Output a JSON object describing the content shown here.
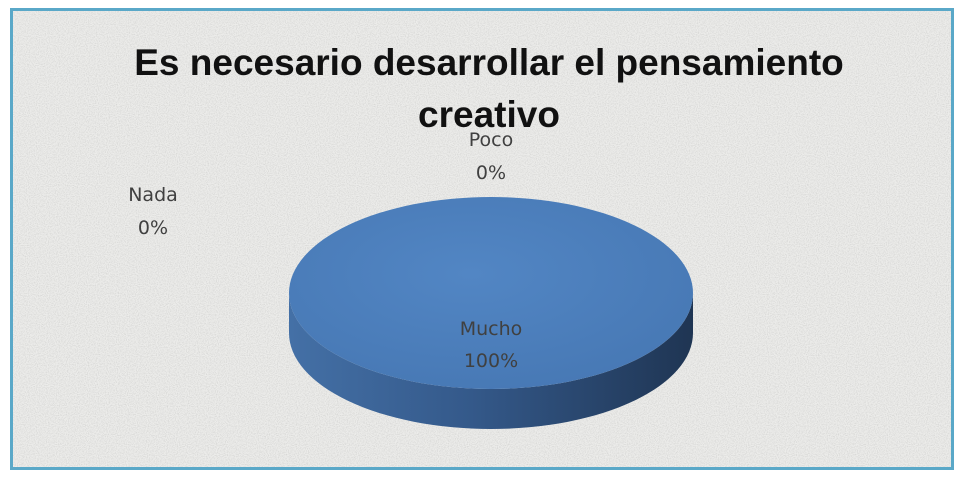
{
  "chart_data": {
    "type": "pie",
    "style": "3d",
    "title_lines": [
      "Es necesario desarrollar el pensamiento",
      "creativo"
    ],
    "categories": [
      "Mucho",
      "Poco",
      "Nada"
    ],
    "values": [
      100,
      0,
      0
    ],
    "data_labels": [
      {
        "category": "Mucho",
        "value": "100%"
      },
      {
        "category": "Poco",
        "value": "0%"
      },
      {
        "category": "Nada",
        "value": "0%"
      }
    ],
    "legend": "none",
    "colors": {
      "slice_top": "#4a7ebb",
      "slice_side_dark": "#1f3553",
      "slice_side_light": "#4470a6",
      "frame": "#5aa8c8",
      "background": "#ececea"
    }
  }
}
